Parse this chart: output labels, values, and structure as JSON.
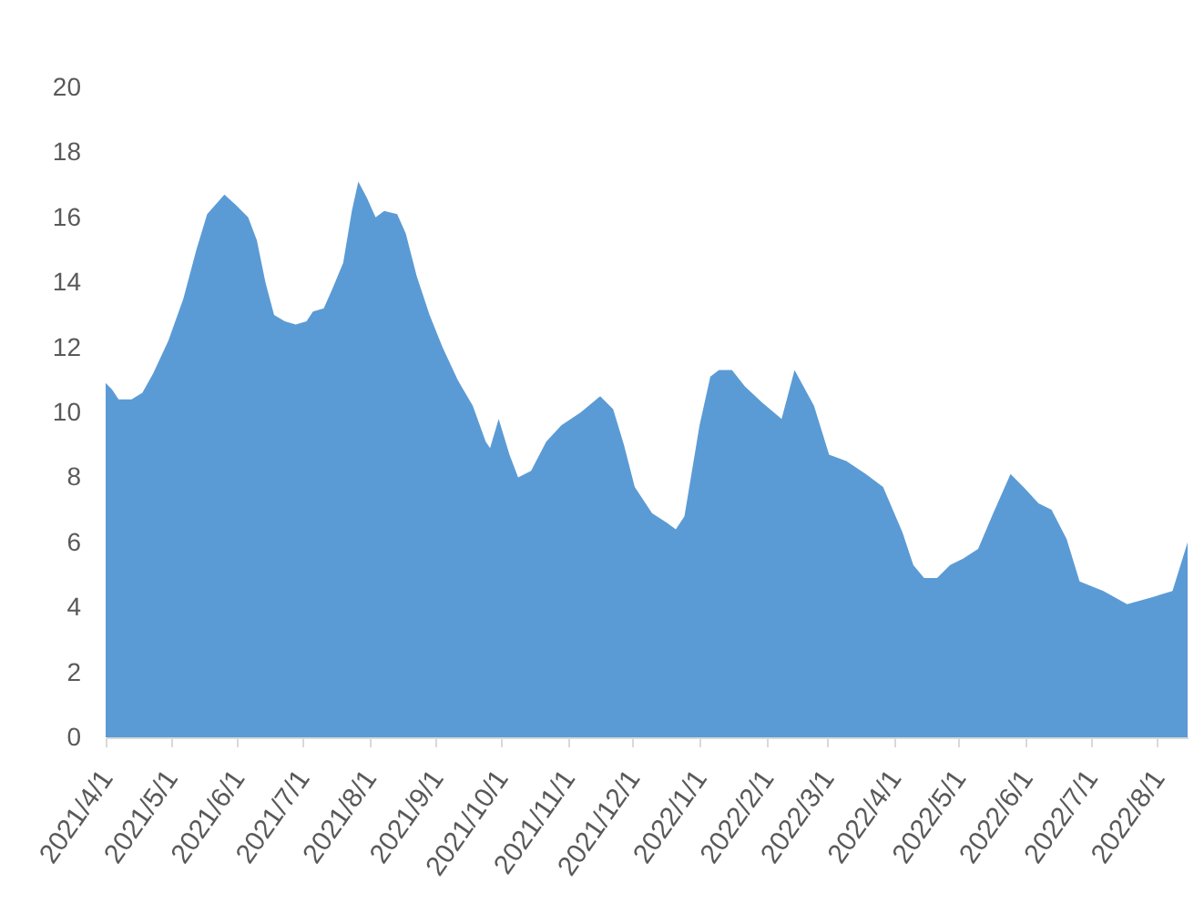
{
  "chart_data": {
    "type": "area",
    "x": [
      "2021-04-01",
      "2021-04-04",
      "2021-04-07",
      "2021-04-13",
      "2021-04-18",
      "2021-04-23",
      "2021-04-30",
      "2021-05-07",
      "2021-05-13",
      "2021-05-18",
      "2021-05-22",
      "2021-05-26",
      "2021-05-31",
      "2021-06-06",
      "2021-06-10",
      "2021-06-14",
      "2021-06-18",
      "2021-06-23",
      "2021-06-28",
      "2021-07-03",
      "2021-07-06",
      "2021-07-11",
      "2021-07-15",
      "2021-07-20",
      "2021-07-24",
      "2021-07-27",
      "2021-07-31",
      "2021-08-04",
      "2021-08-08",
      "2021-08-14",
      "2021-08-18",
      "2021-08-23",
      "2021-08-29",
      "2021-09-04",
      "2021-09-11",
      "2021-09-18",
      "2021-09-24",
      "2021-09-26",
      "2021-09-30",
      "2021-10-05",
      "2021-10-09",
      "2021-10-15",
      "2021-10-22",
      "2021-10-29",
      "2021-11-07",
      "2021-11-16",
      "2021-11-22",
      "2021-11-27",
      "2021-12-02",
      "2021-12-10",
      "2021-12-17",
      "2021-12-21",
      "2021-12-25",
      "2022-01-01",
      "2022-01-06",
      "2022-01-10",
      "2022-01-16",
      "2022-01-22",
      "2022-01-30",
      "2022-02-08",
      "2022-02-14",
      "2022-02-23",
      "2022-03-02",
      "2022-03-10",
      "2022-03-19",
      "2022-03-27",
      "2022-04-05",
      "2022-04-10",
      "2022-04-15",
      "2022-04-21",
      "2022-04-27",
      "2022-05-03",
      "2022-05-10",
      "2022-05-17",
      "2022-05-25",
      "2022-05-31",
      "2022-06-07",
      "2022-06-13",
      "2022-06-20",
      "2022-06-26",
      "2022-07-07",
      "2022-07-18",
      "2022-07-29",
      "2022-08-08",
      "2022-08-15"
    ],
    "series": [
      {
        "color": "#5b9bd5",
        "values": [
          10.9,
          10.7,
          10.4,
          10.4,
          10.6,
          11.2,
          12.2,
          13.5,
          15.0,
          16.1,
          16.4,
          16.7,
          16.4,
          16.0,
          15.3,
          14.0,
          13.0,
          12.8,
          12.7,
          12.8,
          13.1,
          13.2,
          13.8,
          14.6,
          16.2,
          17.1,
          16.6,
          16.0,
          16.2,
          16.1,
          15.5,
          14.2,
          13.0,
          12.0,
          11.0,
          10.2,
          9.1,
          8.9,
          9.8,
          8.7,
          8.0,
          8.2,
          9.1,
          9.6,
          10.0,
          10.5,
          10.1,
          9.0,
          7.7,
          6.9,
          6.6,
          6.4,
          6.8,
          9.6,
          11.1,
          11.3,
          11.3,
          10.8,
          10.3,
          9.8,
          11.3,
          10.2,
          8.7,
          8.5,
          8.1,
          7.7,
          6.3,
          5.3,
          4.9,
          4.9,
          5.3,
          5.5,
          5.8,
          6.9,
          8.1,
          7.7,
          7.2,
          7.0,
          6.1,
          4.8,
          4.5,
          4.1,
          4.3,
          4.5,
          6.0
        ]
      }
    ],
    "xlim": [
      "2021-04-01",
      "2022-08-15"
    ],
    "xticks": [
      {
        "value": "2021-04-01",
        "label": "2021/4/1"
      },
      {
        "value": "2021-05-01",
        "label": "2021/5/1"
      },
      {
        "value": "2021-06-01",
        "label": "2021/6/1"
      },
      {
        "value": "2021-07-01",
        "label": "2021/7/1"
      },
      {
        "value": "2021-08-01",
        "label": "2021/8/1"
      },
      {
        "value": "2021-09-01",
        "label": "2021/9/1"
      },
      {
        "value": "2021-10-01",
        "label": "2021/10/1"
      },
      {
        "value": "2021-11-01",
        "label": "2021/11/1"
      },
      {
        "value": "2021-12-01",
        "label": "2021/12/1"
      },
      {
        "value": "2022-01-01",
        "label": "2022/1/1"
      },
      {
        "value": "2022-02-01",
        "label": "2022/2/1"
      },
      {
        "value": "2022-03-01",
        "label": "2022/3/1"
      },
      {
        "value": "2022-04-01",
        "label": "2022/4/1"
      },
      {
        "value": "2022-05-01",
        "label": "2022/5/1"
      },
      {
        "value": "2022-06-01",
        "label": "2022/6/1"
      },
      {
        "value": "2022-07-01",
        "label": "2022/7/1"
      },
      {
        "value": "2022-08-01",
        "label": "2022/8/1"
      }
    ],
    "ylim": [
      0,
      20
    ],
    "yticks": [
      0,
      2,
      4,
      6,
      8,
      10,
      12,
      14,
      16,
      18,
      20
    ],
    "grid": false
  }
}
